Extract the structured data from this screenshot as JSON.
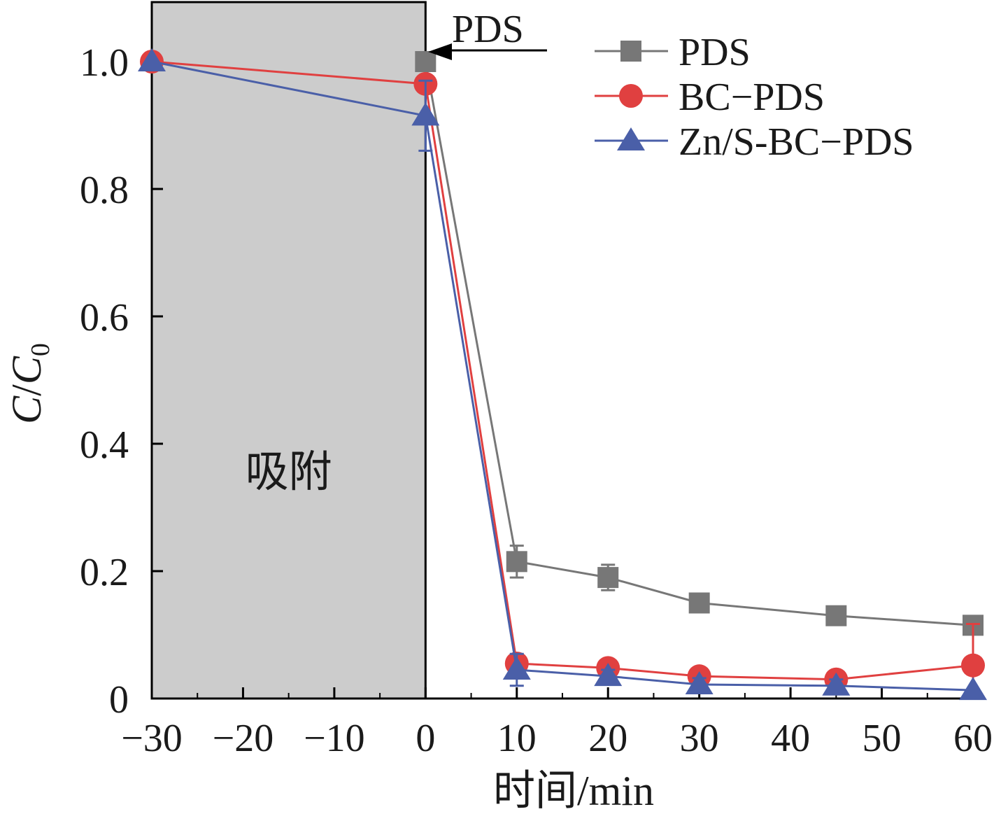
{
  "chart_data": {
    "type": "line",
    "xlabel": "时间/min",
    "ylabel": "C/C0",
    "ylabel_parts": {
      "c": "C",
      "slash": "/",
      "c2": "C",
      "sub": "0"
    },
    "x_tick_labels": [
      "−30",
      "−20",
      "−10",
      "0",
      "10",
      "20",
      "30",
      "40",
      "50",
      "60"
    ],
    "x_tick_values": [
      -30,
      -20,
      -10,
      0,
      10,
      20,
      30,
      40,
      50,
      60
    ],
    "y_tick_labels": [
      "0",
      "0.2",
      "0.4",
      "0.6",
      "0.8",
      "1.0"
    ],
    "y_tick_values": [
      0,
      0.2,
      0.4,
      0.6,
      0.8,
      1.0
    ],
    "xlim": [
      -30,
      60
    ],
    "ylim": [
      0,
      1.1
    ],
    "shaded_region": {
      "x_range": [
        -30,
        0
      ],
      "color": "#cccccc",
      "label": "吸附"
    },
    "annotation": {
      "text": "PDS",
      "x": 0,
      "y": 1.0
    },
    "legend_position": "top-right",
    "grid": false,
    "series": [
      {
        "name": "PDS",
        "color": "#777777",
        "marker": "square",
        "x": [
          0,
          10,
          20,
          30,
          45,
          60
        ],
        "y": [
          1.0,
          0.215,
          0.19,
          0.15,
          0.13,
          0.115
        ],
        "err": [
          0,
          0.025,
          0.02,
          0,
          0,
          0
        ]
      },
      {
        "name": "BC−PDS",
        "color": "#e04040",
        "marker": "circle",
        "x": [
          -30,
          0,
          10,
          20,
          30,
          45,
          60
        ],
        "y": [
          1.0,
          0.965,
          0.055,
          0.048,
          0.035,
          0.03,
          0.052
        ],
        "err": [
          0,
          0,
          0,
          0,
          0,
          0,
          0.065
        ]
      },
      {
        "name": "Zn/S-BC−PDS",
        "color": "#4a5fa8",
        "marker": "triangle",
        "x": [
          -30,
          0,
          10,
          20,
          30,
          45,
          60
        ],
        "y": [
          1.0,
          0.915,
          0.045,
          0.035,
          0.022,
          0.02,
          0.013
        ],
        "err": [
          0,
          0.055,
          0.025,
          0.01,
          0.01,
          0.01,
          0
        ]
      }
    ]
  }
}
